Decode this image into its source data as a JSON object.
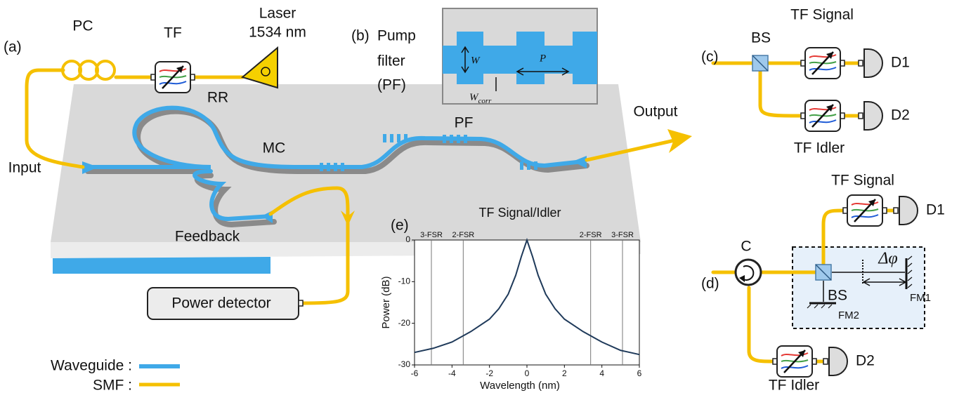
{
  "panel_a": {
    "label": "(a)",
    "pc": "PC",
    "tf": "TF",
    "laser": "Laser",
    "laser_wavelength": "1534 nm",
    "rr": "RR",
    "mc": "MC",
    "pf": "PF",
    "output": "Output",
    "input": "Input",
    "feedback": "Feedback",
    "power_detector": "Power detector",
    "legend_waveguide": "Waveguide :",
    "legend_smf": "SMF :"
  },
  "panel_b": {
    "label": "(b)",
    "title_line1": "Pump",
    "title_line2": "filter",
    "title_line3": "(PF)",
    "w": "W",
    "p": "P",
    "w_corr": {
      "symbol": "W",
      "subscript": "corr"
    }
  },
  "panel_c": {
    "label": "(c)",
    "bs": "BS",
    "tf_signal": "TF Signal",
    "d1": "D1",
    "d2": "D2",
    "tf_idler": "TF Idler"
  },
  "panel_d": {
    "label": "(d)",
    "circulator": "C",
    "tf_signal": "TF Signal",
    "d1": "D1",
    "delta_phi": "Δφ",
    "bs": "BS",
    "fm1": "FM1",
    "fm2": "FM2",
    "d2": "D2",
    "tf_idler": "TF Idler"
  },
  "panel_e_label": "(e)",
  "chart_data": {
    "type": "line",
    "title": "TF Signal/Idler",
    "xlabel": "Wavelength (nm)",
    "ylabel": "Power (dB)",
    "x": [
      -6,
      -5,
      -4,
      -3,
      -2,
      -1.5,
      -1,
      -0.6,
      -0.3,
      0,
      0.3,
      0.6,
      1,
      1.5,
      2,
      3,
      4,
      5,
      6
    ],
    "series": [
      {
        "color": "#1f3a5a",
        "values": [
          -27,
          -26,
          -24.5,
          -22,
          -19,
          -16.5,
          -13,
          -8.5,
          -4,
          0,
          -4,
          -8.5,
          -13,
          -16.5,
          -19,
          -22,
          -24.5,
          -26.5,
          -27.5
        ]
      }
    ],
    "xlim": [
      -6,
      6
    ],
    "ylim": [
      -30,
      0
    ],
    "xticks": [
      -6,
      -4,
      -2,
      0,
      2,
      4,
      6
    ],
    "yticks": [
      0,
      -10,
      -20,
      -30
    ],
    "fsr_markers": [
      {
        "label": "3-FSR",
        "x": -5.1
      },
      {
        "label": "2-FSR",
        "x": -3.4
      },
      {
        "label": "2-FSR",
        "x": 3.4
      },
      {
        "label": "3-FSR",
        "x": 5.1
      }
    ]
  }
}
